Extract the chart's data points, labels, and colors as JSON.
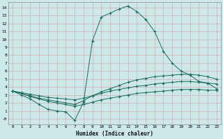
{
  "title": "",
  "xlabel": "Humidex (Indice chaleur)",
  "bg_color": "#cce8e8",
  "line_color": "#1a6b5a",
  "xlim": [
    -0.5,
    23.5
  ],
  "ylim": [
    -0.7,
    14.7
  ],
  "xticks": [
    0,
    1,
    2,
    3,
    4,
    5,
    6,
    7,
    8,
    9,
    10,
    11,
    12,
    13,
    14,
    15,
    16,
    17,
    18,
    19,
    20,
    21,
    22,
    23
  ],
  "yticks": [
    0,
    1,
    2,
    3,
    4,
    5,
    6,
    7,
    8,
    9,
    10,
    11,
    12,
    13,
    14
  ],
  "ytick_labels": [
    "-0",
    "1",
    "2",
    "3",
    "4",
    "5",
    "6",
    "7",
    "8",
    "9",
    "10",
    "11",
    "12",
    "13",
    "14"
  ],
  "lines": [
    {
      "x": [
        0,
        1,
        2,
        3,
        4,
        5,
        6,
        7,
        8,
        9,
        10,
        11,
        12,
        13,
        14,
        15,
        16,
        17,
        18,
        19,
        20,
        21,
        22,
        23
      ],
      "y": [
        3.5,
        3.0,
        2.5,
        1.8,
        1.2,
        1.0,
        0.9,
        -0.2,
        2.1,
        9.8,
        12.8,
        13.3,
        13.8,
        14.2,
        13.5,
        12.5,
        11.0,
        8.5,
        7.0,
        6.0,
        5.5,
        4.7,
        4.5,
        3.8
      ]
    },
    {
      "x": [
        0,
        1,
        2,
        3,
        4,
        5,
        6,
        7,
        8,
        9,
        10,
        11,
        12,
        13,
        14,
        15,
        16,
        17,
        18,
        19,
        20,
        21,
        22,
        23
      ],
      "y": [
        3.5,
        3.2,
        2.9,
        2.6,
        2.4,
        2.2,
        2.0,
        1.8,
        2.3,
        2.9,
        3.4,
        3.8,
        4.2,
        4.6,
        4.9,
        5.1,
        5.3,
        5.4,
        5.5,
        5.6,
        5.6,
        5.5,
        5.3,
        5.0
      ]
    },
    {
      "x": [
        0,
        1,
        2,
        3,
        4,
        5,
        6,
        7,
        8,
        9,
        10,
        11,
        12,
        13,
        14,
        15,
        16,
        17,
        18,
        19,
        20,
        21,
        22,
        23
      ],
      "y": [
        3.5,
        3.3,
        3.1,
        2.9,
        2.7,
        2.6,
        2.5,
        2.4,
        2.6,
        2.9,
        3.2,
        3.5,
        3.7,
        3.9,
        4.1,
        4.2,
        4.4,
        4.5,
        4.6,
        4.7,
        4.7,
        4.6,
        4.5,
        4.4
      ]
    },
    {
      "x": [
        0,
        1,
        2,
        3,
        4,
        5,
        6,
        7,
        8,
        9,
        10,
        11,
        12,
        13,
        14,
        15,
        16,
        17,
        18,
        19,
        20,
        21,
        22,
        23
      ],
      "y": [
        3.5,
        3.2,
        2.8,
        2.5,
        2.2,
        2.0,
        1.8,
        1.6,
        1.8,
        2.1,
        2.4,
        2.6,
        2.8,
        3.0,
        3.2,
        3.3,
        3.4,
        3.5,
        3.6,
        3.7,
        3.7,
        3.7,
        3.6,
        3.6
      ]
    }
  ]
}
